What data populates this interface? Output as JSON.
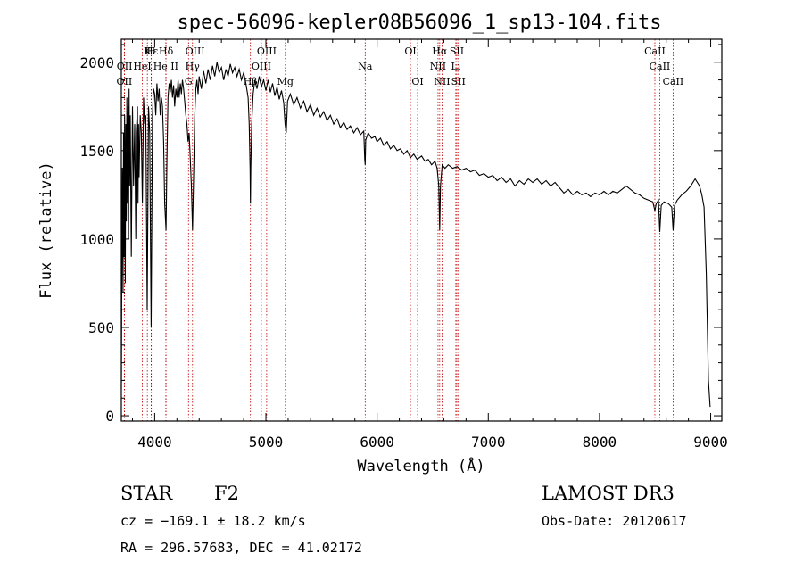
{
  "chart_data": {
    "type": "line",
    "title": "spec-56096-kepler08B56096_1_sp13-104.fits",
    "xlabel": "Wavelength (Å)",
    "ylabel": "Flux (relative)",
    "xlim": [
      3700,
      9100
    ],
    "ylim": [
      -30,
      2130
    ],
    "x_ticks": [
      4000,
      5000,
      6000,
      7000,
      8000,
      9000
    ],
    "y_ticks": [
      0,
      500,
      1000,
      1500,
      2000
    ],
    "series": [
      {
        "name": "flux",
        "points": [
          [
            3700,
            150
          ],
          [
            3705,
            900
          ],
          [
            3710,
            1400
          ],
          [
            3715,
            700
          ],
          [
            3720,
            1600
          ],
          [
            3725,
            900
          ],
          [
            3730,
            1700
          ],
          [
            3735,
            750
          ],
          [
            3740,
            1650
          ],
          [
            3745,
            1100
          ],
          [
            3750,
            1800
          ],
          [
            3755,
            1200
          ],
          [
            3760,
            1750
          ],
          [
            3765,
            1000
          ],
          [
            3770,
            1850
          ],
          [
            3775,
            1300
          ],
          [
            3780,
            1700
          ],
          [
            3790,
            900
          ],
          [
            3800,
            1750
          ],
          [
            3810,
            1300
          ],
          [
            3820,
            1650
          ],
          [
            3830,
            1000
          ],
          [
            3835,
            1600
          ],
          [
            3845,
            1750
          ],
          [
            3850,
            1200
          ],
          [
            3855,
            1650
          ],
          [
            3860,
            1350
          ],
          [
            3870,
            1700
          ],
          [
            3880,
            1600
          ],
          [
            3889,
            1200
          ],
          [
            3900,
            1800
          ],
          [
            3910,
            1650
          ],
          [
            3920,
            1700
          ],
          [
            3933,
            600
          ],
          [
            3945,
            1750
          ],
          [
            3955,
            1600
          ],
          [
            3968,
            500
          ],
          [
            3980,
            1700
          ],
          [
            3990,
            1850
          ],
          [
            4000,
            1820
          ],
          [
            4010,
            1700
          ],
          [
            4020,
            1880
          ],
          [
            4030,
            1780
          ],
          [
            4040,
            1850
          ],
          [
            4050,
            1700
          ],
          [
            4060,
            1800
          ],
          [
            4070,
            1750
          ],
          [
            4080,
            1550
          ],
          [
            4090,
            1200
          ],
          [
            4102,
            1050
          ],
          [
            4110,
            1450
          ],
          [
            4120,
            1800
          ],
          [
            4130,
            1880
          ],
          [
            4140,
            1830
          ],
          [
            4150,
            1900
          ],
          [
            4160,
            1800
          ],
          [
            4170,
            1870
          ],
          [
            4180,
            1750
          ],
          [
            4190,
            1850
          ],
          [
            4200,
            1800
          ],
          [
            4210,
            1900
          ],
          [
            4220,
            1800
          ],
          [
            4230,
            1880
          ],
          [
            4240,
            1820
          ],
          [
            4250,
            1900
          ],
          [
            4260,
            1850
          ],
          [
            4270,
            1780
          ],
          [
            4280,
            1700
          ],
          [
            4290,
            1650
          ],
          [
            4300,
            1550
          ],
          [
            4310,
            1600
          ],
          [
            4320,
            1450
          ],
          [
            4330,
            1300
          ],
          [
            4340,
            1050
          ],
          [
            4350,
            1350
          ],
          [
            4360,
            1700
          ],
          [
            4370,
            1850
          ],
          [
            4380,
            1900
          ],
          [
            4390,
            1820
          ],
          [
            4400,
            1920
          ],
          [
            4420,
            1850
          ],
          [
            4440,
            1950
          ],
          [
            4460,
            1880
          ],
          [
            4480,
            1960
          ],
          [
            4500,
            1900
          ],
          [
            4520,
            1980
          ],
          [
            4540,
            1920
          ],
          [
            4560,
            2000
          ],
          [
            4580,
            1940
          ],
          [
            4600,
            1970
          ],
          [
            4620,
            1900
          ],
          [
            4640,
            1960
          ],
          [
            4660,
            1920
          ],
          [
            4680,
            1990
          ],
          [
            4700,
            1940
          ],
          [
            4720,
            1970
          ],
          [
            4740,
            1920
          ],
          [
            4760,
            1960
          ],
          [
            4780,
            1900
          ],
          [
            4800,
            1940
          ],
          [
            4820,
            1880
          ],
          [
            4840,
            1800
          ],
          [
            4850,
            1650
          ],
          [
            4858,
            1400
          ],
          [
            4861,
            1200
          ],
          [
            4864,
            1400
          ],
          [
            4872,
            1650
          ],
          [
            4885,
            1820
          ],
          [
            4900,
            1900
          ],
          [
            4920,
            1850
          ],
          [
            4940,
            1920
          ],
          [
            4960,
            1860
          ],
          [
            4980,
            1900
          ],
          [
            5000,
            1840
          ],
          [
            5020,
            1900
          ],
          [
            5040,
            1830
          ],
          [
            5060,
            1880
          ],
          [
            5080,
            1810
          ],
          [
            5100,
            1860
          ],
          [
            5120,
            1790
          ],
          [
            5140,
            1840
          ],
          [
            5160,
            1770
          ],
          [
            5172,
            1650
          ],
          [
            5183,
            1600
          ],
          [
            5195,
            1780
          ],
          [
            5220,
            1820
          ],
          [
            5250,
            1760
          ],
          [
            5280,
            1800
          ],
          [
            5310,
            1740
          ],
          [
            5340,
            1780
          ],
          [
            5370,
            1720
          ],
          [
            5400,
            1760
          ],
          [
            5430,
            1700
          ],
          [
            5460,
            1740
          ],
          [
            5490,
            1690
          ],
          [
            5520,
            1720
          ],
          [
            5550,
            1670
          ],
          [
            5580,
            1700
          ],
          [
            5610,
            1650
          ],
          [
            5640,
            1680
          ],
          [
            5670,
            1630
          ],
          [
            5700,
            1660
          ],
          [
            5730,
            1620
          ],
          [
            5760,
            1640
          ],
          [
            5790,
            1600
          ],
          [
            5820,
            1630
          ],
          [
            5850,
            1590
          ],
          [
            5880,
            1610
          ],
          [
            5889,
            1450
          ],
          [
            5893,
            1420
          ],
          [
            5898,
            1560
          ],
          [
            5920,
            1600
          ],
          [
            5950,
            1570
          ],
          [
            5980,
            1580
          ],
          [
            6000,
            1550
          ],
          [
            6030,
            1570
          ],
          [
            6060,
            1530
          ],
          [
            6090,
            1550
          ],
          [
            6120,
            1510
          ],
          [
            6150,
            1530
          ],
          [
            6180,
            1500
          ],
          [
            6210,
            1510
          ],
          [
            6240,
            1480
          ],
          [
            6270,
            1500
          ],
          [
            6300,
            1460
          ],
          [
            6330,
            1480
          ],
          [
            6360,
            1450
          ],
          [
            6400,
            1470
          ],
          [
            6430,
            1440
          ],
          [
            6460,
            1450
          ],
          [
            6490,
            1420
          ],
          [
            6520,
            1440
          ],
          [
            6540,
            1400
          ],
          [
            6555,
            1300
          ],
          [
            6563,
            1050
          ],
          [
            6570,
            1300
          ],
          [
            6585,
            1420
          ],
          [
            6610,
            1400
          ],
          [
            6640,
            1420
          ],
          [
            6680,
            1400
          ],
          [
            6720,
            1410
          ],
          [
            6760,
            1390
          ],
          [
            6800,
            1400
          ],
          [
            6840,
            1380
          ],
          [
            6880,
            1390
          ],
          [
            6920,
            1360
          ],
          [
            6960,
            1370
          ],
          [
            7000,
            1350
          ],
          [
            7040,
            1360
          ],
          [
            7080,
            1330
          ],
          [
            7120,
            1350
          ],
          [
            7160,
            1320
          ],
          [
            7200,
            1340
          ],
          [
            7240,
            1300
          ],
          [
            7280,
            1330
          ],
          [
            7320,
            1310
          ],
          [
            7360,
            1340
          ],
          [
            7400,
            1320
          ],
          [
            7440,
            1340
          ],
          [
            7480,
            1310
          ],
          [
            7520,
            1330
          ],
          [
            7560,
            1300
          ],
          [
            7600,
            1320
          ],
          [
            7640,
            1290
          ],
          [
            7680,
            1260
          ],
          [
            7720,
            1280
          ],
          [
            7760,
            1250
          ],
          [
            7800,
            1270
          ],
          [
            7840,
            1250
          ],
          [
            7880,
            1260
          ],
          [
            7920,
            1240
          ],
          [
            7960,
            1260
          ],
          [
            8000,
            1250
          ],
          [
            8040,
            1270
          ],
          [
            8080,
            1250
          ],
          [
            8120,
            1270
          ],
          [
            8160,
            1260
          ],
          [
            8200,
            1280
          ],
          [
            8240,
            1300
          ],
          [
            8280,
            1280
          ],
          [
            8320,
            1260
          ],
          [
            8360,
            1250
          ],
          [
            8400,
            1230
          ],
          [
            8440,
            1220
          ],
          [
            8480,
            1210
          ],
          [
            8498,
            1160
          ],
          [
            8510,
            1200
          ],
          [
            8530,
            1220
          ],
          [
            8542,
            1040
          ],
          [
            8555,
            1190
          ],
          [
            8580,
            1210
          ],
          [
            8620,
            1200
          ],
          [
            8650,
            1180
          ],
          [
            8662,
            1050
          ],
          [
            8675,
            1190
          ],
          [
            8700,
            1220
          ],
          [
            8740,
            1250
          ],
          [
            8780,
            1270
          ],
          [
            8820,
            1300
          ],
          [
            8860,
            1340
          ],
          [
            8880,
            1320
          ],
          [
            8900,
            1300
          ],
          [
            8920,
            1250
          ],
          [
            8940,
            1180
          ],
          [
            8960,
            800
          ],
          [
            8980,
            200
          ],
          [
            8995,
            50
          ]
        ]
      }
    ],
    "spectral_lines": [
      {
        "label": "Hε",
        "wavelength": 3970,
        "row": 1
      },
      {
        "label": "K",
        "wavelength": 3934,
        "row": 1
      },
      {
        "label": "H",
        "wavelength": 3968,
        "row": 1
      },
      {
        "label": "Hδ",
        "wavelength": 4102,
        "row": 1
      },
      {
        "label": "OIII",
        "wavelength": 4363,
        "row": 1
      },
      {
        "label": "OII",
        "wavelength": 3727,
        "row": 3
      },
      {
        "label": "HeI",
        "wavelength": 3889,
        "row": 2
      },
      {
        "label": "OII",
        "wavelength": 3729,
        "row": 2
      },
      {
        "label": "He II",
        "wavelength": 4100,
        "row": 2
      },
      {
        "label": "Hγ",
        "wavelength": 4340,
        "row": 2
      },
      {
        "label": "G",
        "wavelength": 4304,
        "row": 3
      },
      {
        "label": "OIII",
        "wavelength": 5007,
        "row": 1
      },
      {
        "label": "OIII",
        "wavelength": 4959,
        "row": 2
      },
      {
        "label": "Hβ",
        "wavelength": 4861,
        "row": 3
      },
      {
        "label": "Mg",
        "wavelength": 5175,
        "row": 3
      },
      {
        "label": "Na",
        "wavelength": 5893,
        "row": 2
      },
      {
        "label": "OI",
        "wavelength": 6300,
        "row": 1
      },
      {
        "label": "OI",
        "wavelength": 6364,
        "row": 3
      },
      {
        "label": "Hα",
        "wavelength": 6563,
        "row": 1
      },
      {
        "label": "NII",
        "wavelength": 6548,
        "row": 2
      },
      {
        "label": "NII",
        "wavelength": 6584,
        "row": 3
      },
      {
        "label": "SII",
        "wavelength": 6717,
        "row": 1
      },
      {
        "label": "Li",
        "wavelength": 6708,
        "row": 2
      },
      {
        "label": "SII",
        "wavelength": 6731,
        "row": 3
      },
      {
        "label": "CaII",
        "wavelength": 8498,
        "row": 1
      },
      {
        "label": "CaII",
        "wavelength": 8542,
        "row": 2
      },
      {
        "label": "CaII",
        "wavelength": 8662,
        "row": 3
      }
    ]
  },
  "info": {
    "object_class": "STAR",
    "subclass": "F2",
    "survey": "LAMOST DR3",
    "cz": "cz = −169.1 ± 18.2 km/s",
    "obs_date": "Obs-Date: 20120617",
    "coords": "RA = 296.57683, DEC =  41.02172"
  },
  "colors": {
    "spectrum": "#000000",
    "line_marker": "#c00000",
    "axis": "#000000",
    "background": "#ffffff"
  }
}
